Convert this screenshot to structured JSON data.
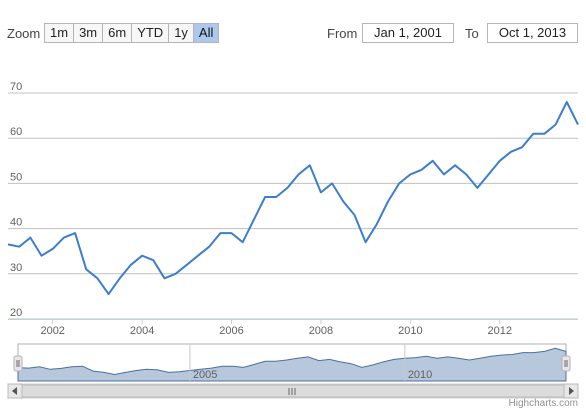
{
  "range_selector": {
    "zoom_label": "Zoom",
    "buttons": [
      {
        "label": "1m",
        "active": false
      },
      {
        "label": "3m",
        "active": false
      },
      {
        "label": "6m",
        "active": false
      },
      {
        "label": "YTD",
        "active": false
      },
      {
        "label": "1y",
        "active": false
      },
      {
        "label": "All",
        "active": true
      }
    ],
    "from_label": "From",
    "from_value": "Jan 1, 2001",
    "to_label": "To",
    "to_value": "Oct 1, 2013"
  },
  "navigator": {
    "year_labels": [
      "2005",
      "2010"
    ]
  },
  "credits": "Highcharts.com",
  "colors": {
    "series_line": "#3d7ecc",
    "navigator_fill": "#b7c7dc",
    "navigator_line": "#4d6f9c",
    "grid": "#c0c0c0",
    "active_button": "#acc8ee"
  },
  "chart_data": {
    "type": "line",
    "title": "",
    "xlabel": "",
    "ylabel": "",
    "xlim": [
      "2001-01-01",
      "2013-10-01"
    ],
    "ylim": [
      20,
      70
    ],
    "y_ticks": [
      20,
      30,
      40,
      50,
      60,
      70
    ],
    "x_ticks": [
      "2002",
      "2004",
      "2006",
      "2008",
      "2010",
      "2012"
    ],
    "grid": "horizontal",
    "series": [
      {
        "x": [
          "2001-01",
          "2001-04",
          "2001-07",
          "2001-10",
          "2002-01",
          "2002-04",
          "2002-07",
          "2002-10",
          "2003-01",
          "2003-04",
          "2003-07",
          "2003-10",
          "2004-01",
          "2004-04",
          "2004-07",
          "2004-10",
          "2005-01",
          "2005-04",
          "2005-07",
          "2005-10",
          "2006-01",
          "2006-04",
          "2006-07",
          "2006-10",
          "2007-01",
          "2007-04",
          "2007-07",
          "2007-10",
          "2008-01",
          "2008-04",
          "2008-07",
          "2008-10",
          "2009-01",
          "2009-04",
          "2009-07",
          "2009-10",
          "2010-01",
          "2010-04",
          "2010-07",
          "2010-10",
          "2011-01",
          "2011-04",
          "2011-07",
          "2011-10",
          "2012-01",
          "2012-04",
          "2012-07",
          "2012-10",
          "2013-01",
          "2013-04",
          "2013-07",
          "2013-10"
        ],
        "y": [
          36.5,
          36,
          38,
          34,
          35.5,
          38,
          39,
          31,
          29,
          25.5,
          29,
          32,
          34,
          33,
          29,
          30,
          32,
          34,
          36,
          39,
          39,
          37,
          42,
          47,
          47,
          49,
          52,
          54,
          48,
          50,
          46,
          43,
          37,
          41,
          46,
          50,
          52,
          53,
          55,
          52,
          54,
          52,
          49,
          52,
          55,
          57,
          58,
          61,
          61,
          63,
          68,
          63
        ]
      }
    ]
  }
}
